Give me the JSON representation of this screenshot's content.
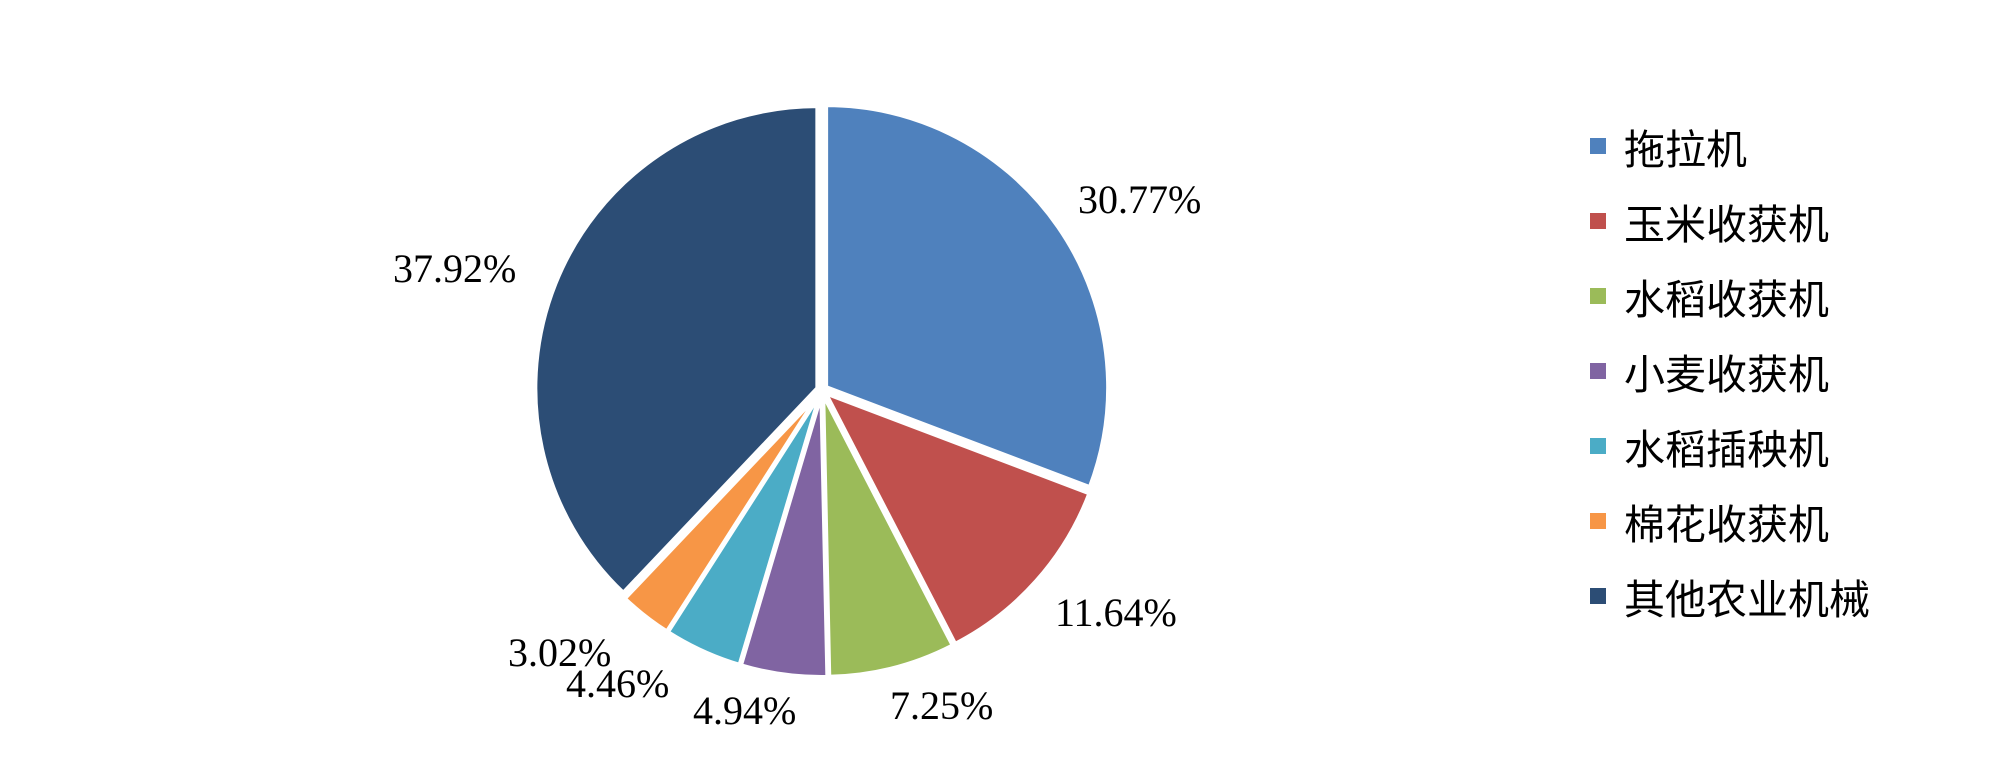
{
  "chart_data": {
    "type": "pie",
    "title": "",
    "slices": [
      {
        "label": "拖拉机",
        "value": 30.77,
        "value_label": "30.77%",
        "color": "#4F81BD"
      },
      {
        "label": "玉米收获机",
        "value": 11.64,
        "value_label": "11.64%",
        "color": "#C0504D"
      },
      {
        "label": "水稻收获机",
        "value": 7.25,
        "value_label": "7.25%",
        "color": "#9BBB59"
      },
      {
        "label": "小麦收获机",
        "value": 4.94,
        "value_label": "4.94%",
        "color": "#8064A2"
      },
      {
        "label": "水稻插秧机",
        "value": 4.46,
        "value_label": "4.46%",
        "color": "#4BACC6"
      },
      {
        "label": "棉花收获机",
        "value": 3.02,
        "value_label": "3.02%",
        "color": "#F79646"
      },
      {
        "label": "其他农业机械",
        "value": 37.92,
        "value_label": "37.92%",
        "color": "#2C4D75"
      }
    ],
    "legend_position": "right"
  }
}
